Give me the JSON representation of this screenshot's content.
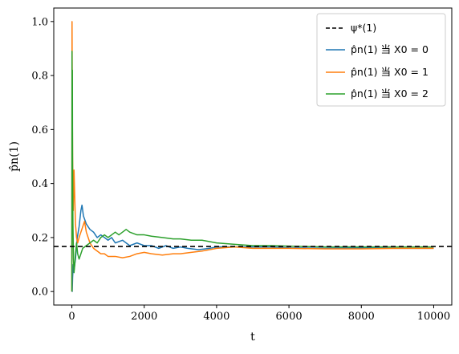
{
  "chart_data": {
    "type": "line",
    "title": "",
    "xlabel": "t",
    "ylabel": "p̂n(1)",
    "xlim": [
      -500,
      10500
    ],
    "ylim": [
      -0.05,
      1.05
    ],
    "xticks": [
      0,
      2000,
      4000,
      6000,
      8000,
      10000
    ],
    "yticks": [
      0.0,
      0.2,
      0.4,
      0.6,
      0.8,
      1.0
    ],
    "xtick_labels": [
      "0",
      "2000",
      "4000",
      "6000",
      "8000",
      "10000"
    ],
    "ytick_labels": [
      "0.0",
      "0.2",
      "0.4",
      "0.6",
      "0.8",
      "1.0"
    ],
    "grid": false,
    "legend_position": "top-right",
    "reference_line": {
      "name": "ψ*(1)",
      "y": 0.1667,
      "style": "dashed",
      "color": "#000000"
    },
    "series": [
      {
        "name": "p̂n(1) 当 X0 = 0",
        "color": "#1f77b4",
        "points": [
          [
            0,
            0.0
          ],
          [
            10,
            0.0
          ],
          [
            20,
            0.05
          ],
          [
            40,
            0.1
          ],
          [
            60,
            0.08
          ],
          [
            100,
            0.12
          ],
          [
            150,
            0.2
          ],
          [
            200,
            0.24
          ],
          [
            250,
            0.3
          ],
          [
            280,
            0.32
          ],
          [
            320,
            0.28
          ],
          [
            400,
            0.25
          ],
          [
            500,
            0.23
          ],
          [
            600,
            0.22
          ],
          [
            700,
            0.2
          ],
          [
            800,
            0.21
          ],
          [
            900,
            0.2
          ],
          [
            1000,
            0.19
          ],
          [
            1100,
            0.2
          ],
          [
            1200,
            0.18
          ],
          [
            1400,
            0.19
          ],
          [
            1600,
            0.17
          ],
          [
            1800,
            0.18
          ],
          [
            2000,
            0.17
          ],
          [
            2200,
            0.17
          ],
          [
            2400,
            0.16
          ],
          [
            2600,
            0.17
          ],
          [
            2800,
            0.16
          ],
          [
            3000,
            0.165
          ],
          [
            3200,
            0.16
          ],
          [
            3500,
            0.155
          ],
          [
            3800,
            0.16
          ],
          [
            4000,
            0.165
          ],
          [
            4500,
            0.165
          ],
          [
            5000,
            0.165
          ],
          [
            5500,
            0.165
          ],
          [
            6000,
            0.162
          ],
          [
            7000,
            0.16
          ],
          [
            8000,
            0.162
          ],
          [
            9000,
            0.16
          ],
          [
            10000,
            0.16
          ]
        ]
      },
      {
        "name": "p̂n(1) 当 X0 = 1",
        "color": "#ff7f0e",
        "points": [
          [
            0,
            0.0
          ],
          [
            5,
            1.0
          ],
          [
            12,
            0.7
          ],
          [
            20,
            0.5
          ],
          [
            40,
            0.3
          ],
          [
            60,
            0.45
          ],
          [
            80,
            0.35
          ],
          [
            100,
            0.25
          ],
          [
            130,
            0.2
          ],
          [
            160,
            0.18
          ],
          [
            200,
            0.2
          ],
          [
            250,
            0.22
          ],
          [
            300,
            0.24
          ],
          [
            350,
            0.26
          ],
          [
            400,
            0.22
          ],
          [
            450,
            0.2
          ],
          [
            500,
            0.18
          ],
          [
            600,
            0.16
          ],
          [
            700,
            0.15
          ],
          [
            800,
            0.14
          ],
          [
            900,
            0.14
          ],
          [
            1000,
            0.13
          ],
          [
            1200,
            0.13
          ],
          [
            1400,
            0.125
          ],
          [
            1600,
            0.13
          ],
          [
            1800,
            0.14
          ],
          [
            2000,
            0.145
          ],
          [
            2200,
            0.14
          ],
          [
            2500,
            0.135
          ],
          [
            2800,
            0.14
          ],
          [
            3000,
            0.14
          ],
          [
            3300,
            0.145
          ],
          [
            3600,
            0.15
          ],
          [
            4000,
            0.16
          ],
          [
            4500,
            0.165
          ],
          [
            5000,
            0.16
          ],
          [
            5500,
            0.16
          ],
          [
            6000,
            0.16
          ],
          [
            7000,
            0.158
          ],
          [
            8000,
            0.158
          ],
          [
            9000,
            0.16
          ],
          [
            10000,
            0.16
          ]
        ]
      },
      {
        "name": "p̂n(1) 当 X0 = 2",
        "color": "#2ca02c",
        "points": [
          [
            0,
            0.0
          ],
          [
            4,
            0.89
          ],
          [
            8,
            0.6
          ],
          [
            14,
            0.82
          ],
          [
            20,
            0.45
          ],
          [
            30,
            0.25
          ],
          [
            45,
            0.12
          ],
          [
            60,
            0.07
          ],
          [
            80,
            0.1
          ],
          [
            100,
            0.14
          ],
          [
            130,
            0.18
          ],
          [
            160,
            0.14
          ],
          [
            200,
            0.12
          ],
          [
            250,
            0.14
          ],
          [
            300,
            0.16
          ],
          [
            400,
            0.17
          ],
          [
            500,
            0.18
          ],
          [
            600,
            0.19
          ],
          [
            700,
            0.18
          ],
          [
            800,
            0.2
          ],
          [
            900,
            0.21
          ],
          [
            1000,
            0.2
          ],
          [
            1100,
            0.21
          ],
          [
            1200,
            0.22
          ],
          [
            1300,
            0.21
          ],
          [
            1400,
            0.22
          ],
          [
            1500,
            0.23
          ],
          [
            1600,
            0.22
          ],
          [
            1800,
            0.21
          ],
          [
            2000,
            0.21
          ],
          [
            2200,
            0.205
          ],
          [
            2500,
            0.2
          ],
          [
            2800,
            0.195
          ],
          [
            3000,
            0.195
          ],
          [
            3300,
            0.19
          ],
          [
            3600,
            0.19
          ],
          [
            4000,
            0.18
          ],
          [
            4500,
            0.175
          ],
          [
            5000,
            0.17
          ],
          [
            5500,
            0.17
          ],
          [
            6000,
            0.168
          ],
          [
            7000,
            0.165
          ],
          [
            8000,
            0.165
          ],
          [
            9000,
            0.165
          ],
          [
            10000,
            0.165
          ]
        ]
      }
    ]
  }
}
